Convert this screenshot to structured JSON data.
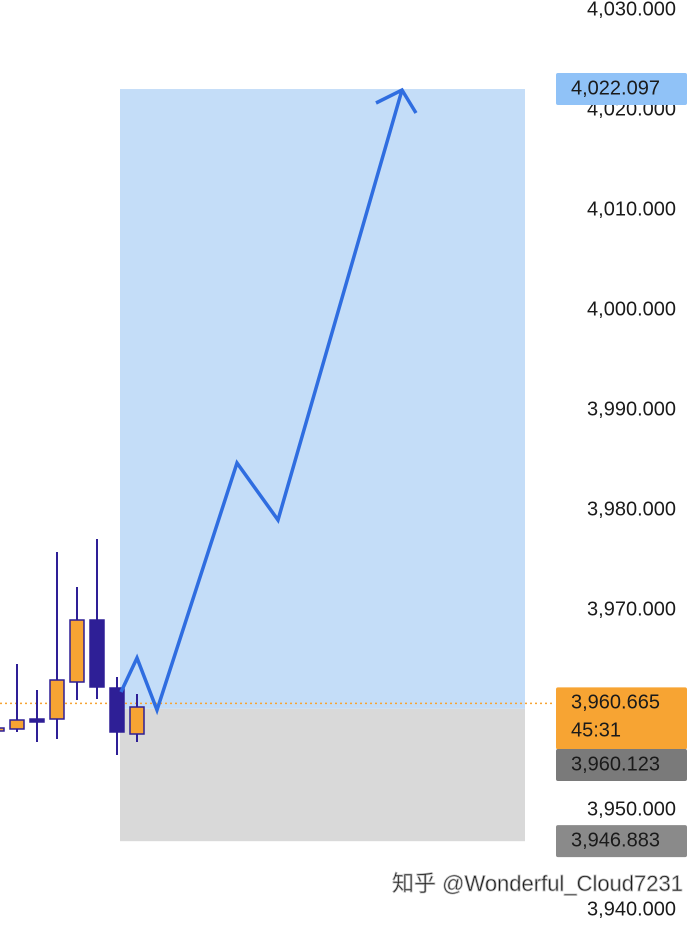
{
  "chart_data": {
    "type": "candlestick",
    "x": [
      0,
      1,
      2,
      3,
      4,
      5,
      6,
      7
    ],
    "open": [
      3957.9,
      3958.1,
      3959.1,
      3959.1,
      3962.8,
      3969.0,
      3962.2,
      3957.6
    ],
    "high": [
      3958.3,
      3964.6,
      3962.0,
      3975.8,
      3972.3,
      3977.1,
      3963.3,
      3961.6
    ],
    "low": [
      3957.7,
      3957.8,
      3956.8,
      3957.1,
      3961.0,
      3961.1,
      3955.5,
      3956.8
    ],
    "close": [
      3958.2,
      3959.0,
      3958.8,
      3963.0,
      3969.0,
      3962.3,
      3957.8,
      3960.3
    ],
    "up_color": "#f7a433",
    "down_color": "#2e1f96",
    "xlim": [
      0.15,
      35
    ],
    "ylim": [
      3939.1,
      4031
    ],
    "yticks": [
      {
        "value": 3940,
        "label": "3,940.000"
      },
      {
        "value": 3950,
        "label": "3,950.000"
      },
      {
        "value": 3970,
        "label": "3,970.000"
      },
      {
        "value": 3980,
        "label": "3,980.000"
      },
      {
        "value": 3990,
        "label": "3,990.000"
      },
      {
        "value": 4000,
        "label": "4,000.000"
      },
      {
        "value": 4010,
        "label": "4,010.000"
      },
      {
        "value": 4020,
        "label": "4,020.000"
      },
      {
        "value": 4030,
        "label": "4,030.000"
      }
    ],
    "projection": {
      "x_range": [
        6.15,
        26.4
      ],
      "target_color": "#c4ddf8",
      "stop_color": "#d9d9d9",
      "path_x": [
        6.2,
        7,
        8,
        12,
        14.05,
        20.25
      ],
      "path_y": [
        3961.8,
        3965.2,
        3960.0,
        3984.7,
        3979.0,
        4022.0
      ],
      "arrow_color": "#2f6de0"
    },
    "price_tags": [
      {
        "value": 4022.097,
        "label": "4,022.097",
        "color": "#90c2f7",
        "text_color": "#1a1a1a"
      },
      {
        "value": 3960.665,
        "label": "3,960.665",
        "countdown": "45:31",
        "color": "#f7a433",
        "text_color": "#1a1a1a"
      },
      {
        "value": 3960.123,
        "label": "3,960.123",
        "color": "#7a7a7a",
        "text_color": "#ffffff"
      },
      {
        "value": 3946.883,
        "label": "3,946.883",
        "color": "#8a8a8a",
        "text_color": "#ffffff"
      }
    ],
    "watermark": "知乎 @Wonderful_Cloud7231"
  }
}
